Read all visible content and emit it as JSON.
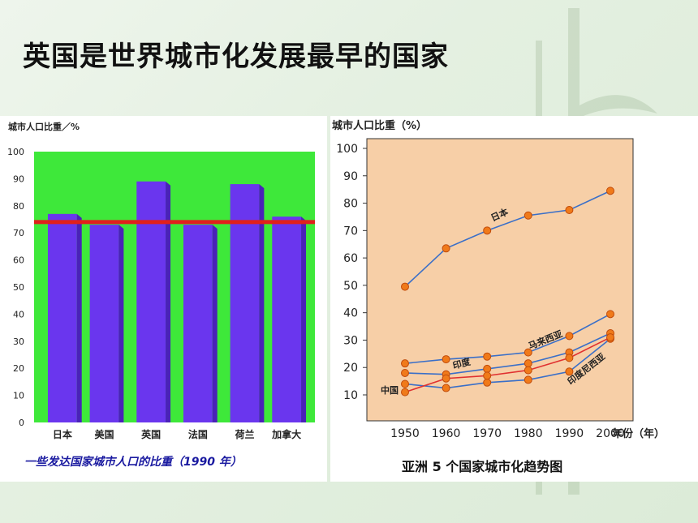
{
  "slide": {
    "title": "英国是世界城市化发展最早的国家"
  },
  "colors": {
    "bar_green": "#3ee83a",
    "bar_purple": "#6a36ee",
    "bar_purple_dark": "#4a22b8",
    "ref_line": "#e0201c",
    "caption_blue": "#1a1aa0",
    "line_plot_bg": "#f7cfa7",
    "series_line": "#3a6fc8",
    "series_red": "#e03030",
    "marker_fill": "#f07a1a"
  },
  "chart_data": [
    {
      "type": "bar",
      "ylabel": "城市人口比重／%",
      "caption": "一些发达国家城市人口的比重（1990 年）",
      "categories": [
        "日本",
        "美国",
        "英国",
        "法国",
        "荷兰",
        "加拿大"
      ],
      "values": [
        77,
        73,
        89,
        73,
        88,
        76
      ],
      "ylim": [
        0,
        100
      ],
      "yticks": [
        0,
        10,
        20,
        30,
        40,
        50,
        60,
        70,
        80,
        90,
        100
      ],
      "reference_line": 74,
      "grid": false
    },
    {
      "type": "line",
      "ylabel": "城市人口比重（%）",
      "xlabel": "年份（年）",
      "caption": "亚洲 5 个国家城市化趋势图",
      "x": [
        1950,
        1960,
        1970,
        1980,
        1990,
        2000
      ],
      "ylim": [
        0,
        100
      ],
      "yticks": [
        10,
        20,
        30,
        40,
        50,
        60,
        70,
        80,
        90,
        100
      ],
      "grid": false,
      "series": [
        {
          "name": "日本",
          "values": [
            49.5,
            63.5,
            70,
            75.5,
            77.5,
            84.5
          ]
        },
        {
          "name": "马来西亚",
          "values": [
            21.5,
            23,
            24,
            25.5,
            31.5,
            39.5
          ]
        },
        {
          "name": "印度",
          "values": [
            18,
            17.5,
            19.5,
            21.5,
            25.5,
            32.5
          ]
        },
        {
          "name": "印度尼西亚",
          "values": [
            14,
            12.5,
            14.5,
            15.5,
            18.5,
            30.5
          ]
        },
        {
          "name": "中国",
          "values": [
            11,
            16,
            17,
            19,
            23.5,
            31
          ],
          "color": "red"
        }
      ]
    }
  ]
}
